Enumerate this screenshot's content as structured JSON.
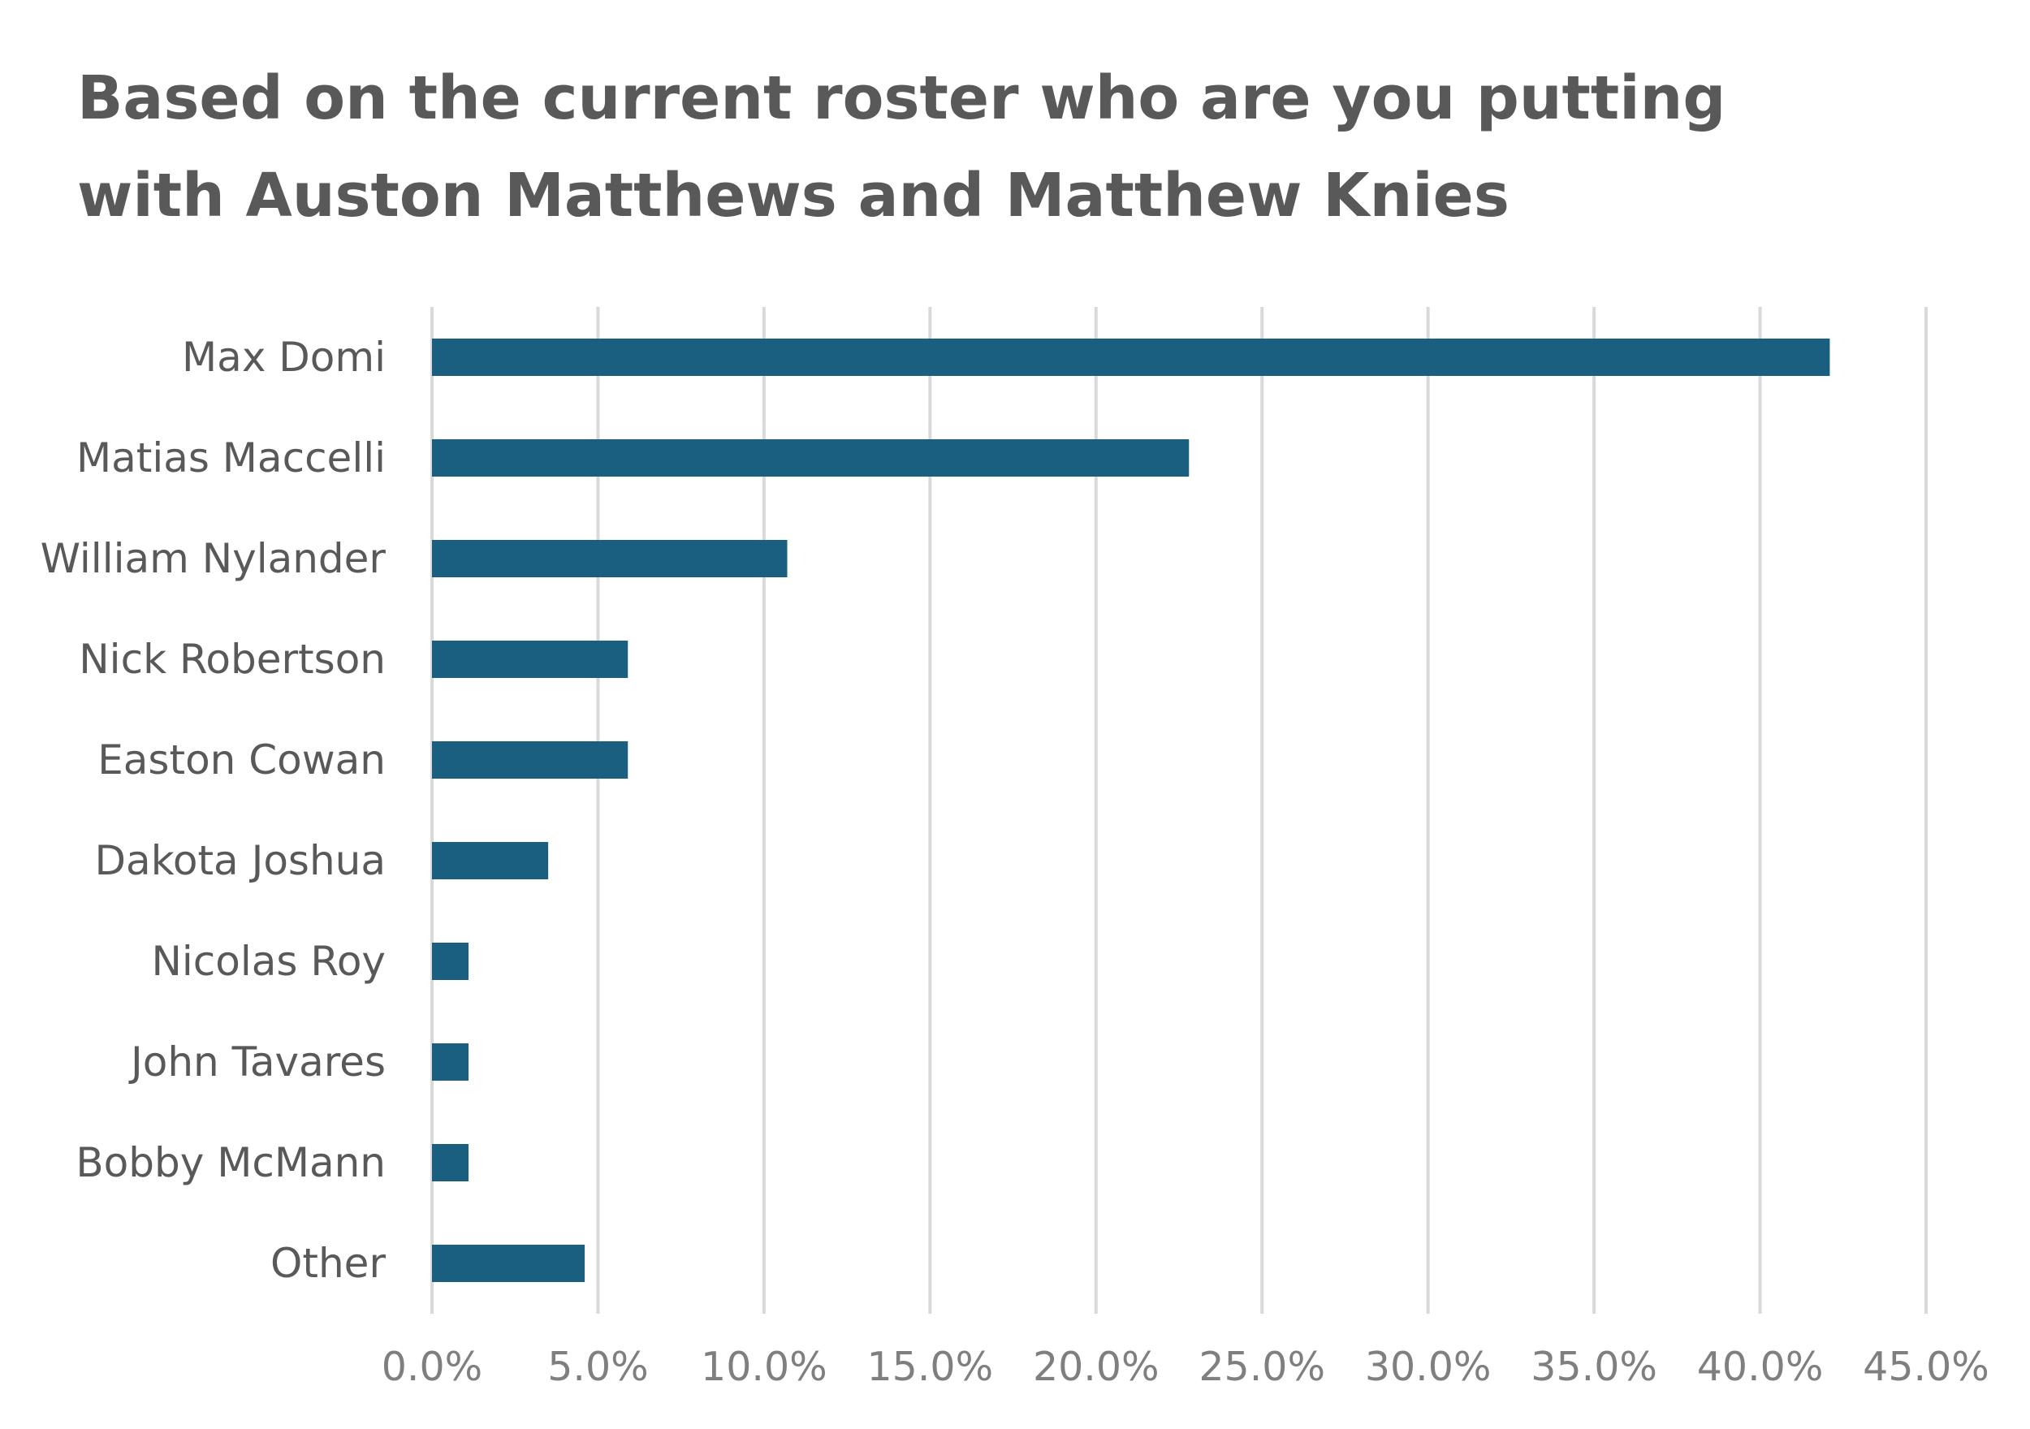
{
  "chart_data": {
    "type": "bar",
    "orientation": "horizontal",
    "title_lines": [
      "Based on the current roster who are you putting",
      "with Auston Matthews and Matthew Knies"
    ],
    "categories": [
      "Max Domi",
      "Matias Maccelli",
      "William Nylander",
      "Nick Robertson",
      "Easton Cowan",
      "Dakota Joshua",
      "Nicolas Roy",
      "John Tavares",
      "Bobby McMann",
      "Other"
    ],
    "values": [
      42.1,
      22.8,
      10.7,
      5.9,
      5.9,
      3.5,
      1.1,
      1.1,
      1.1,
      4.6
    ],
    "xlim": [
      0,
      45
    ],
    "x_ticks": [
      "0.0%",
      "5.0%",
      "10.0%",
      "15.0%",
      "20.0%",
      "25.0%",
      "30.0%",
      "35.0%",
      "40.0%",
      "45.0%"
    ],
    "value_format": "percent",
    "grid": "vertical",
    "legend": "none",
    "colors": {
      "bar": "#1a5e80",
      "gridline": "#d9d9d9",
      "title": "#595959",
      "category_label": "#595959",
      "tick_label": "#7f7f7f"
    }
  }
}
